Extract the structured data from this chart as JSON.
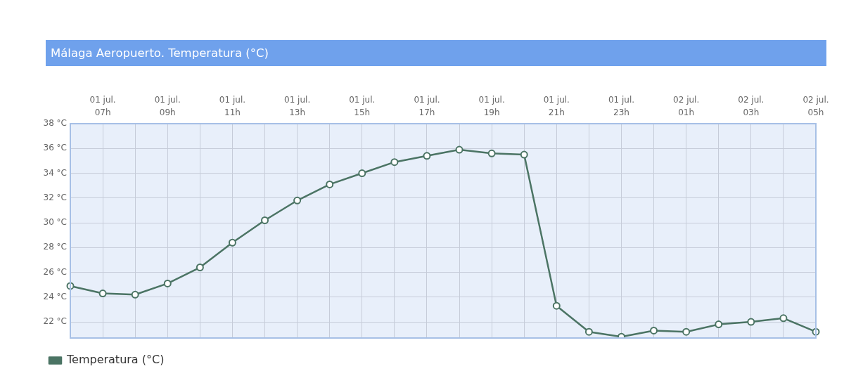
{
  "chart_data": {
    "type": "line",
    "title": "Málaga Aeropuerto. Temperatura (°C)",
    "categories": [
      null,
      "01 jul.\n07h",
      null,
      "01 jul.\n09h",
      null,
      "01 jul.\n11h",
      null,
      "01 jul.\n13h",
      null,
      "01 jul.\n15h",
      null,
      "01 jul.\n17h",
      null,
      "01 jul.\n19h",
      null,
      "01 jul.\n21h",
      null,
      "01 jul.\n23h",
      null,
      "02 jul.\n01h",
      null,
      "02 jul.\n03h",
      null,
      "02 jul.\n05h"
    ],
    "series": [
      {
        "name": "Temperatura (°C)",
        "color": "#4b7464",
        "values": [
          24.9,
          24.3,
          24.2,
          25.1,
          26.4,
          28.4,
          30.2,
          31.8,
          33.1,
          34.0,
          34.9,
          35.4,
          35.9,
          35.6,
          35.5,
          23.3,
          21.2,
          20.8,
          21.3,
          21.2,
          21.8,
          22.0,
          22.3,
          21.2
        ]
      }
    ],
    "ylim": [
      20.7,
      38
    ],
    "yticks": [
      {
        "value": 22,
        "label": "22 °C"
      },
      {
        "value": 24,
        "label": "24 °C"
      },
      {
        "value": 26,
        "label": "26 °C"
      },
      {
        "value": 28,
        "label": "28 °C"
      },
      {
        "value": 30,
        "label": "30 °C"
      },
      {
        "value": 32,
        "label": "32 °C"
      },
      {
        "value": 34,
        "label": "34 °C"
      },
      {
        "value": 36,
        "label": "36 °C"
      },
      {
        "value": 38,
        "label": "38 °C"
      }
    ],
    "grid": true,
    "legend": "bottom left",
    "marker": "circle",
    "line_style": "solid"
  }
}
